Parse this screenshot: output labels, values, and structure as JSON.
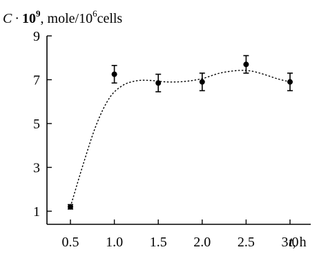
{
  "chart_data": {
    "type": "scatter",
    "title": "",
    "ylabel": {
      "symbol": "C",
      "dot": "·",
      "base": "10",
      "exponent": "9",
      "unit_prefix": ", mole/10",
      "unit_exponent": "6",
      "unit_suffix": "cells"
    },
    "xlabel": {
      "symbol": "t",
      "unit": ", h"
    },
    "xlim": [
      0.35,
      3.3
    ],
    "ylim": [
      0.5,
      9
    ],
    "xticks": [
      0.5,
      1.0,
      1.5,
      2.0,
      2.5,
      3.0
    ],
    "xtick_labels": [
      "0.5",
      "1.0",
      "1.5",
      "2.0",
      "2.5",
      "3.0"
    ],
    "yticks": [
      1,
      3,
      5,
      7,
      9
    ],
    "ytick_labels": [
      "1",
      "3",
      "5",
      "7",
      "9"
    ],
    "grid": false,
    "series": [
      {
        "points": [
          {
            "x": 0.5,
            "y": 1.2,
            "err": 0.1
          },
          {
            "x": 1.0,
            "y": 7.25,
            "err": 0.4
          },
          {
            "x": 1.5,
            "y": 6.85,
            "err": 0.4
          },
          {
            "x": 2.0,
            "y": 6.9,
            "err": 0.4
          },
          {
            "x": 2.5,
            "y": 7.7,
            "err": 0.4
          },
          {
            "x": 3.0,
            "y": 6.9,
            "err": 0.4
          }
        ]
      }
    ],
    "fit_curve": [
      {
        "x": 0.5,
        "y": 1.2
      },
      {
        "x": 0.65,
        "y": 3.2
      },
      {
        "x": 0.8,
        "y": 5.0
      },
      {
        "x": 0.95,
        "y": 6.2
      },
      {
        "x": 1.1,
        "y": 6.75
      },
      {
        "x": 1.25,
        "y": 6.95
      },
      {
        "x": 1.4,
        "y": 6.97
      },
      {
        "x": 1.6,
        "y": 6.9
      },
      {
        "x": 1.8,
        "y": 6.92
      },
      {
        "x": 2.0,
        "y": 7.05
      },
      {
        "x": 2.2,
        "y": 7.3
      },
      {
        "x": 2.4,
        "y": 7.42
      },
      {
        "x": 2.55,
        "y": 7.4
      },
      {
        "x": 2.7,
        "y": 7.25
      },
      {
        "x": 2.85,
        "y": 7.05
      },
      {
        "x": 3.0,
        "y": 6.9
      }
    ]
  }
}
